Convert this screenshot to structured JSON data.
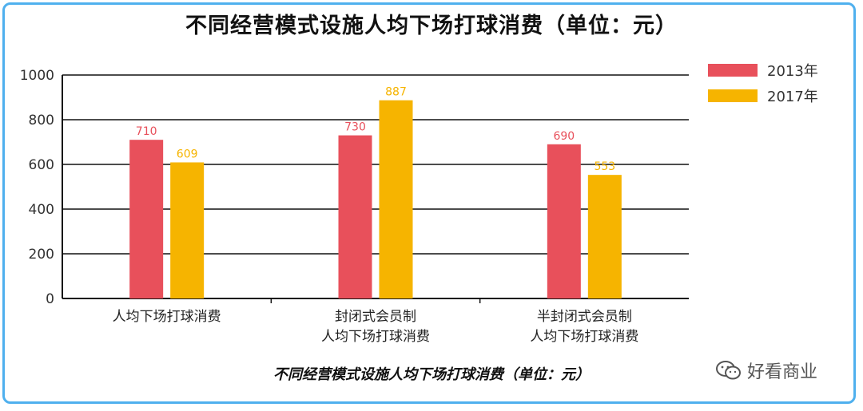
{
  "title": "不同经营模式设施人均下场打球消费（单位：元）",
  "caption": "不同经营模式设施人均下场打球消费（单位：元）",
  "watermark": "好看商业",
  "colors": {
    "s2013": "#e8505b",
    "s2017": "#f6b400",
    "border": "#4fb0ee",
    "grid": "#111111"
  },
  "chart_data": {
    "type": "bar",
    "categories": [
      [
        "人均下场打球消费"
      ],
      [
        "封闭式会员制",
        "人均下场打球消费"
      ],
      [
        "半封闭式会员制",
        "人均下场打球消费"
      ]
    ],
    "series": [
      {
        "name": "2013年",
        "values": [
          710,
          730,
          690
        ]
      },
      {
        "name": "2017年",
        "values": [
          609,
          887,
          553
        ]
      }
    ],
    "ylim": [
      0,
      1000
    ],
    "yticks": [
      0,
      200,
      400,
      600,
      800,
      1000
    ],
    "grid": true,
    "legend": "top-right"
  }
}
